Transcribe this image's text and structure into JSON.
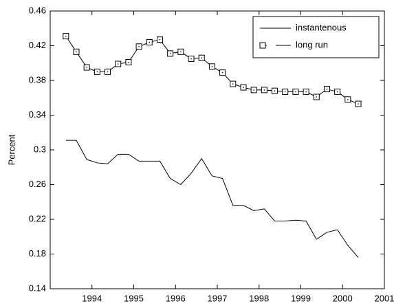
{
  "chart_data": {
    "type": "line",
    "y_label": "Percent",
    "x": [
      1993.375,
      1993.625,
      1993.875,
      1994.125,
      1994.375,
      1994.625,
      1994.875,
      1995.125,
      1995.375,
      1995.625,
      1995.875,
      1996.125,
      1996.375,
      1996.625,
      1996.875,
      1997.125,
      1997.375,
      1997.625,
      1997.875,
      1998.125,
      1998.375,
      1998.625,
      1998.875,
      1999.125,
      1999.375,
      1999.625,
      1999.875,
      2000.125,
      2000.375
    ],
    "series": [
      {
        "name": "instantenous",
        "color": "#000000",
        "marker": "none",
        "values": [
          0.311,
          0.311,
          0.289,
          0.285,
          0.284,
          0.295,
          0.295,
          0.287,
          0.287,
          0.287,
          0.267,
          0.26,
          0.273,
          0.29,
          0.27,
          0.267,
          0.236,
          0.236,
          0.23,
          0.232,
          0.218,
          0.218,
          0.219,
          0.218,
          0.197,
          0.205,
          0.208,
          0.19,
          0.176
        ]
      },
      {
        "name": "long run",
        "color": "#000000",
        "marker": "square",
        "values": [
          0.431,
          0.413,
          0.395,
          0.39,
          0.39,
          0.399,
          0.401,
          0.419,
          0.424,
          0.427,
          0.411,
          0.413,
          0.405,
          0.406,
          0.396,
          0.389,
          0.376,
          0.372,
          0.369,
          0.369,
          0.368,
          0.367,
          0.367,
          0.367,
          0.361,
          0.37,
          0.367,
          0.358,
          0.353
        ]
      }
    ],
    "xlim": [
      1993,
      2001
    ],
    "xticks": [
      1994,
      1995,
      1996,
      1997,
      1998,
      1999,
      2000,
      2001
    ],
    "ylim": [
      0.14,
      0.46
    ],
    "yticks": [
      0.14,
      0.18,
      0.22,
      0.26,
      0.3,
      0.34,
      0.38,
      0.42,
      0.46
    ],
    "legend": "upper right"
  }
}
